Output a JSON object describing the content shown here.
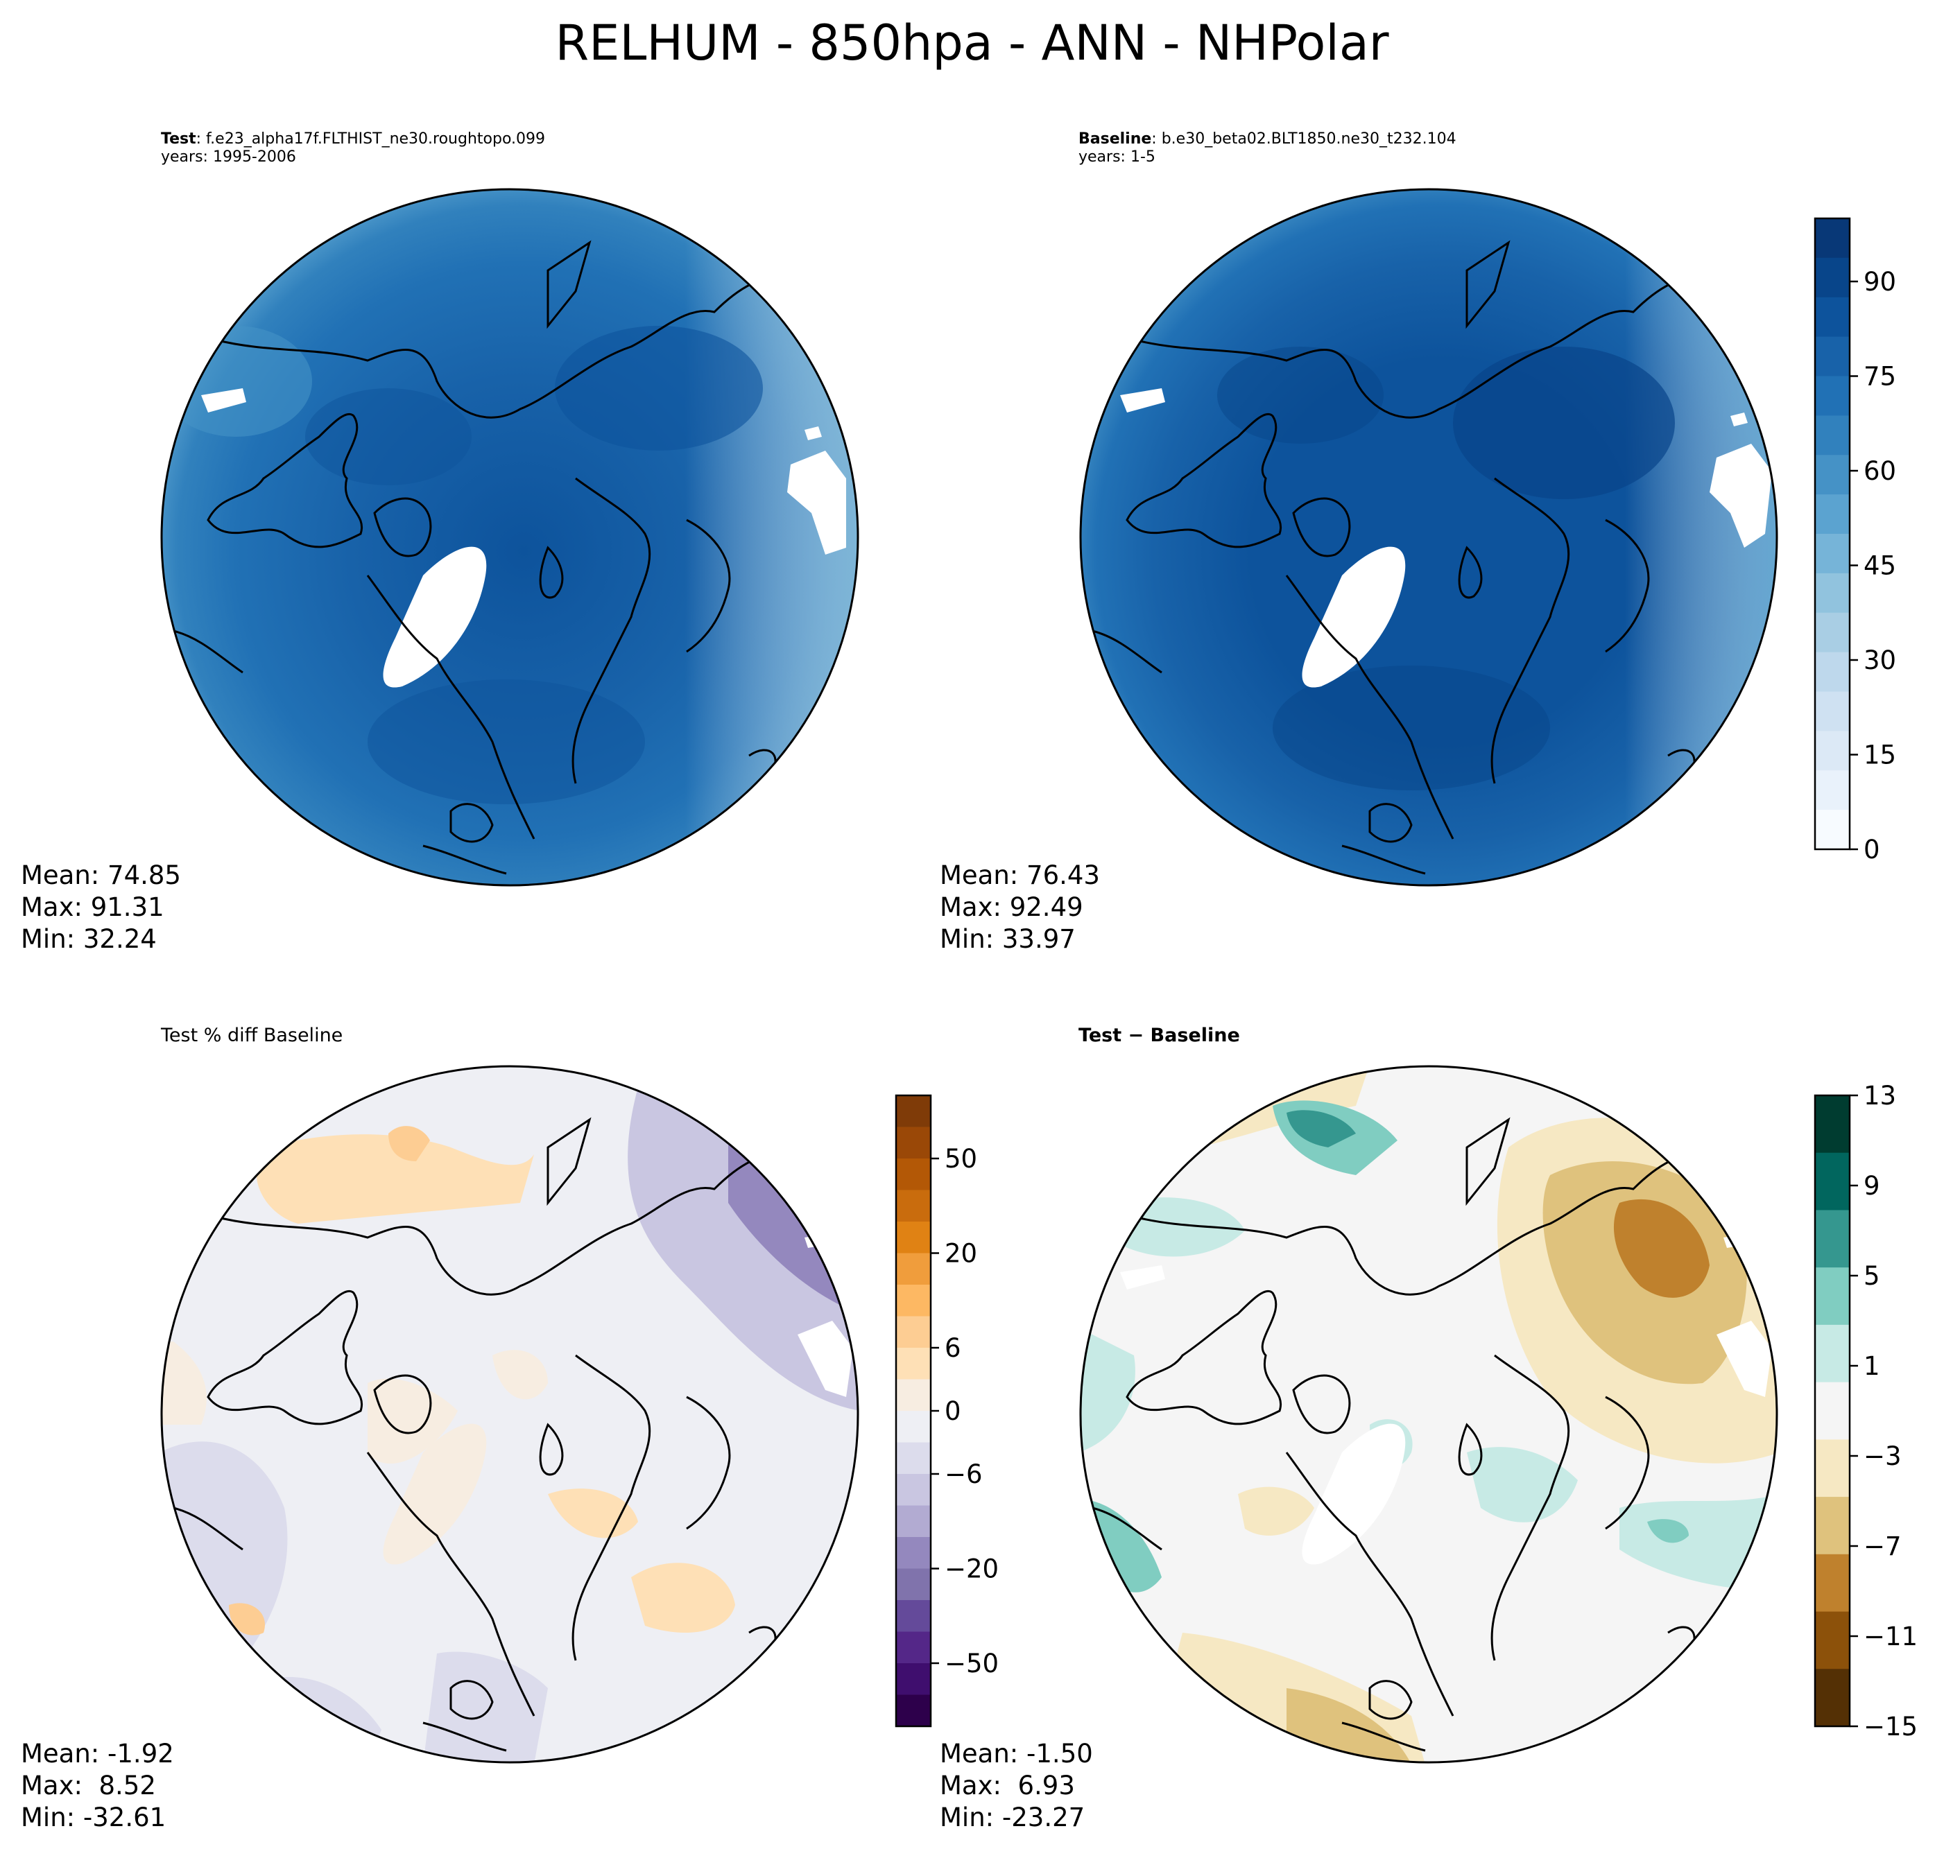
{
  "figure": {
    "title": "RELHUM - 850hpa - ANN - NHPolar"
  },
  "panels": [
    {
      "id": "test",
      "label_bold": "Test",
      "label_rest": ": f.e23_alpha17f.FLTHIST_ne30.roughtopo.099",
      "years": "years: 1995-2006",
      "stats": {
        "mean": "Mean: 74.85",
        "max": "Max: 91.31",
        "min": "Min: 32.24"
      }
    },
    {
      "id": "baseline",
      "label_bold": "Baseline",
      "label_rest": ": b.e30_beta02.BLT1850.ne30_t232.104",
      "years": "years: 1-5",
      "stats": {
        "mean": "Mean: 76.43",
        "max": "Max: 92.49",
        "min": "Min: 33.97"
      }
    },
    {
      "id": "pctdiff",
      "label": "Test % diff Baseline",
      "stats": {
        "mean": "Mean: -1.92",
        "max": "Max:  8.52",
        "min": "Min: -32.61"
      }
    },
    {
      "id": "diff",
      "label": "Test − Baseline",
      "stats": {
        "mean": "Mean: -1.50",
        "max": "Max:  6.93",
        "min": "Min: -23.27"
      }
    }
  ],
  "colorbars": {
    "field": {
      "ticks": [
        "0",
        "15",
        "30",
        "45",
        "60",
        "75",
        "90"
      ],
      "range": [
        0,
        100
      ],
      "colors": [
        "#f7fbff",
        "#e9f2fb",
        "#dce9f6",
        "#cfe1f2",
        "#bed8ec",
        "#a9cee4",
        "#91c3de",
        "#76b4d8",
        "#5ba3d0",
        "#4592c6",
        "#3181bd",
        "#2171b5",
        "#1862a9",
        "#0d539c",
        "#08458a",
        "#083877"
      ]
    },
    "pctdiff": {
      "ticks": [
        "50",
        "20",
        "6",
        "0",
        "−6",
        "−20",
        "−50"
      ],
      "colors_top_to_bottom": [
        "#7f3b08",
        "#9a4807",
        "#b35806",
        "#c96c0d",
        "#e08214",
        "#f09d3c",
        "#fdb863",
        "#fdcd93",
        "#fee0b6",
        "#f7ede1",
        "#eeeff4",
        "#dcdcec",
        "#c9c6e1",
        "#b2abd2",
        "#9488be",
        "#8073ac",
        "#644a9a",
        "#542788",
        "#3f0e6e",
        "#2d004b"
      ]
    },
    "diff": {
      "ticks": [
        "13",
        "9",
        "5",
        "1",
        "−3",
        "−7",
        "−11",
        "−15"
      ],
      "colors_top_to_bottom": [
        "#003c30",
        "#01665e",
        "#35978f",
        "#80cdc1",
        "#c7eae5",
        "#f5f5f5",
        "#f6e8c3",
        "#dfc27d",
        "#bf812d",
        "#8c510a",
        "#543005"
      ]
    }
  },
  "map_colors": {
    "land_outline": "#000000",
    "missing": "#ffffff"
  }
}
